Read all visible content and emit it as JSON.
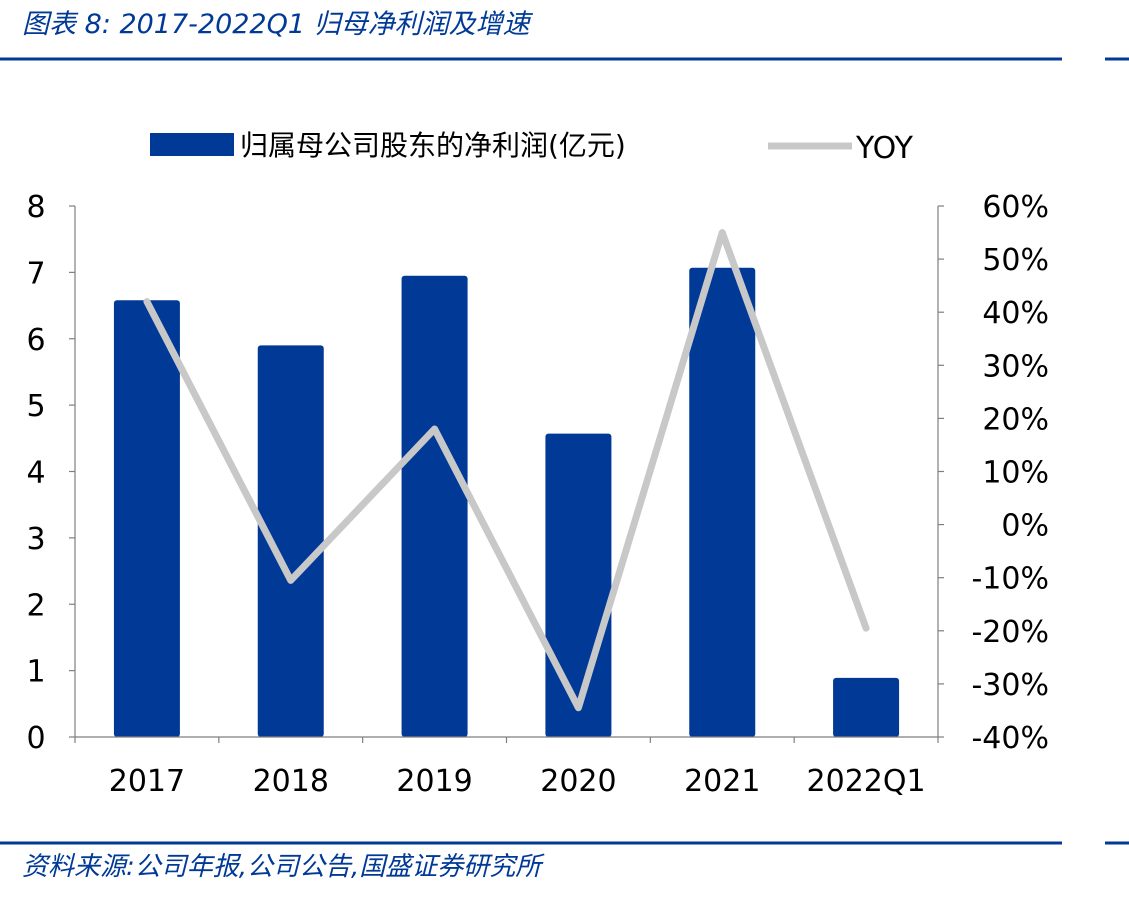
{
  "header": {
    "title": "图表 8:  2017-2022Q1 归母净利润及增速"
  },
  "footer": {
    "source": "资料来源:公司年报,公司公告,国盛证券研究所"
  },
  "colors": {
    "bar": "#003a96",
    "line": "#c8c8c8",
    "rule": "#003a96",
    "title_text": "#003a96",
    "axis": "#7f7f7f",
    "text": "#000000"
  },
  "chart_data": {
    "type": "bar",
    "categories": [
      "2017",
      "2018",
      "2019",
      "2020",
      "2021",
      "2022Q1"
    ],
    "series": [
      {
        "name": "归属母公司股东的净利润(亿元)",
        "type": "bar",
        "axis": "left",
        "values": [
          6.58,
          5.9,
          6.95,
          4.57,
          7.07,
          0.89
        ]
      },
      {
        "name": "YOY",
        "type": "line",
        "axis": "right",
        "values": [
          0.42,
          -0.105,
          0.18,
          -0.345,
          0.55,
          -0.195
        ]
      }
    ],
    "ylim": [
      0,
      8
    ],
    "y_ticks": [
      "0",
      "1",
      "2",
      "3",
      "4",
      "5",
      "6",
      "7",
      "8"
    ],
    "y2lim": [
      -0.4,
      0.6
    ],
    "y2_ticks": [
      "-40%",
      "-30%",
      "-20%",
      "-10%",
      "0%",
      "10%",
      "20%",
      "30%",
      "40%",
      "50%",
      "60%"
    ],
    "legend_position": "top-center",
    "grid": false
  }
}
